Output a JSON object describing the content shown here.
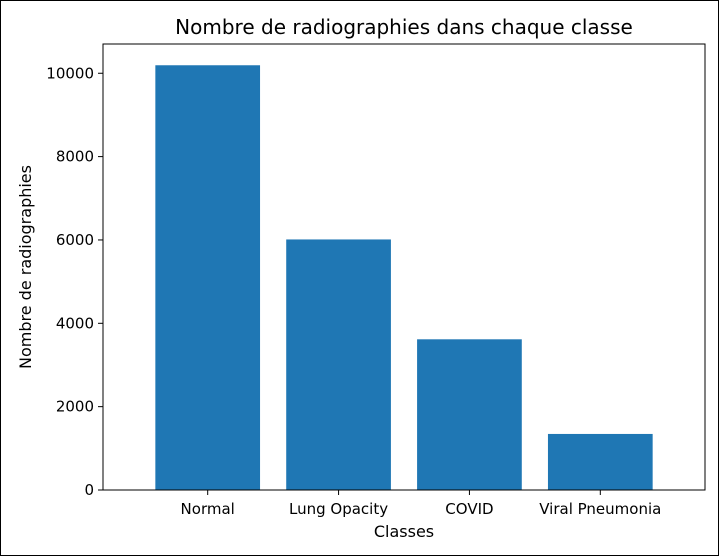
{
  "chart_data": {
    "type": "bar",
    "title": "Nombre de radiographies dans chaque classe",
    "xlabel": "Classes",
    "ylabel": "Nombre de radiographies",
    "categories": [
      "Normal",
      "Lung Opacity",
      "COVID",
      "Viral Pneumonia"
    ],
    "values": [
      10192,
      6012,
      3616,
      1345
    ],
    "ylim": [
      0,
      10702
    ],
    "yticks": [
      0,
      2000,
      4000,
      6000,
      8000,
      10000
    ],
    "grid": false,
    "legend": "none",
    "bar_color": "#1f77b4"
  }
}
